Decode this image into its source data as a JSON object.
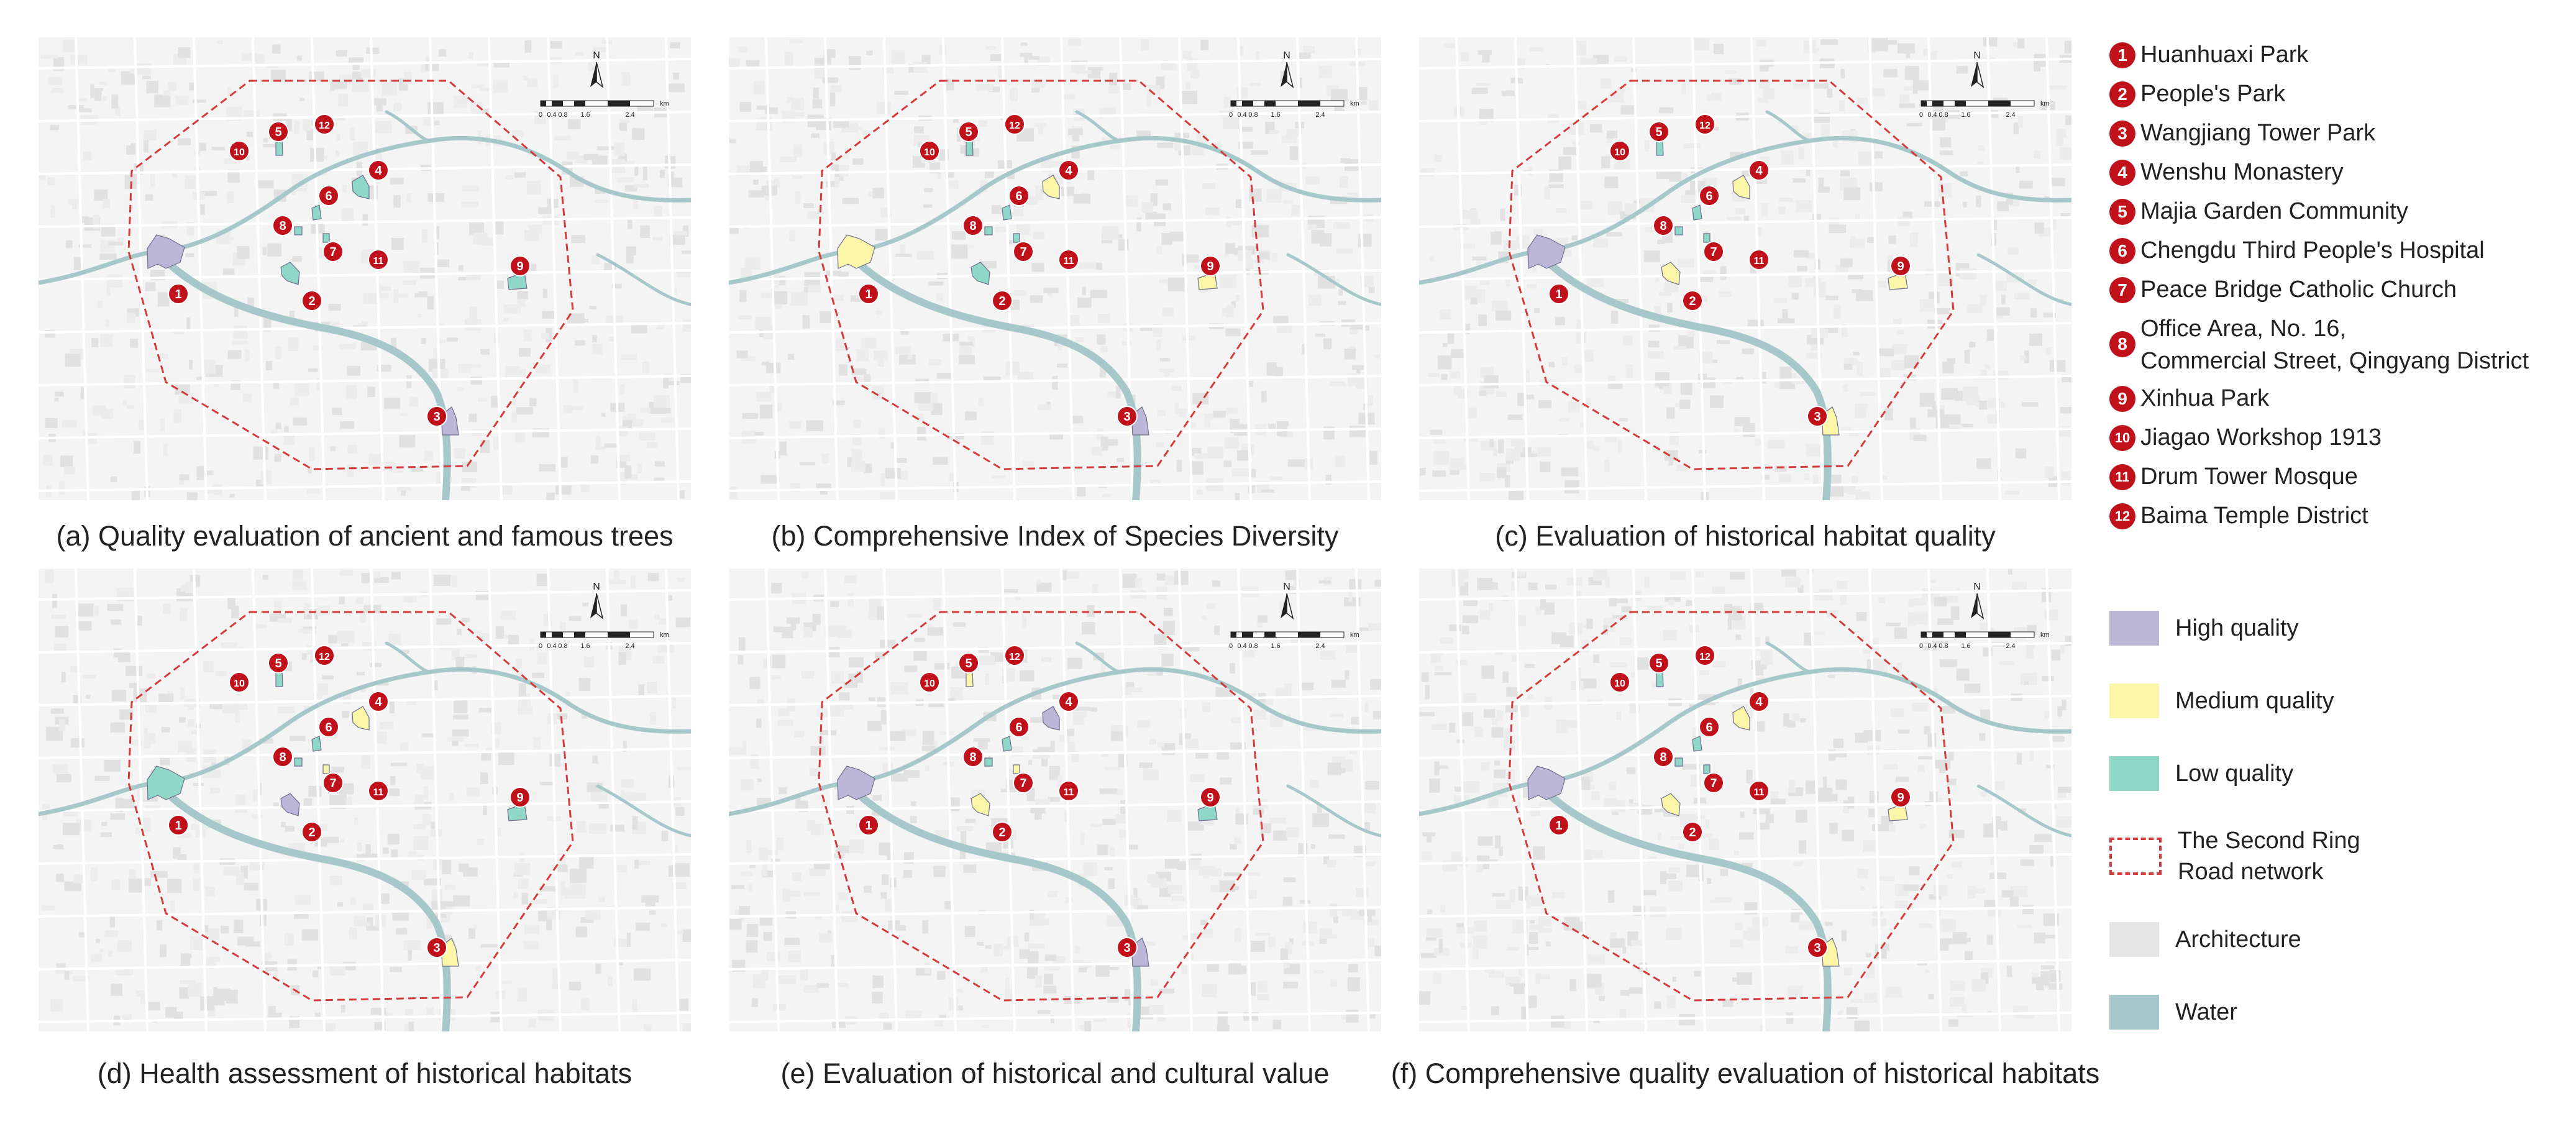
{
  "panels": [
    {
      "id": "a",
      "caption": "(a) Quality evaluation of ancient and famous trees",
      "sites": [
        "high",
        "low",
        "high",
        "low",
        "low",
        "low",
        "low",
        "low",
        "low",
        "none",
        "none",
        "none"
      ]
    },
    {
      "id": "b",
      "caption": "(b) Comprehensive Index of Species Diversity",
      "sites": [
        "medium",
        "low",
        "high",
        "medium",
        "low",
        "low",
        "low",
        "low",
        "medium",
        "none",
        "none",
        "none"
      ]
    },
    {
      "id": "c",
      "caption": "(c) Evaluation of historical habitat quality",
      "sites": [
        "high",
        "medium",
        "medium",
        "medium",
        "low",
        "low",
        "low",
        "low",
        "medium",
        "none",
        "none",
        "none"
      ]
    },
    {
      "id": "d",
      "caption": "(d) Health assessment of historical habitats",
      "sites": [
        "low",
        "high",
        "medium",
        "medium",
        "low",
        "low",
        "medium",
        "low",
        "low",
        "none",
        "none",
        "none"
      ]
    },
    {
      "id": "e",
      "caption": "(e)  Evaluation of historical and cultural value",
      "sites": [
        "high",
        "medium",
        "high",
        "high",
        "medium",
        "low",
        "medium",
        "low",
        "low",
        "none",
        "none",
        "none"
      ]
    },
    {
      "id": "f",
      "caption": "(f) Comprehensive quality evaluation of historical habitats",
      "sites": [
        "high",
        "medium",
        "medium",
        "medium",
        "low",
        "low",
        "low",
        "low",
        "medium",
        "none",
        "none",
        "none"
      ]
    }
  ],
  "map": {
    "scale_labels": [
      "0",
      "0.4",
      "0.8",
      "1.6",
      "2.4"
    ],
    "scale_unit": "km",
    "north_label": "N",
    "marker_numbers": [
      "1",
      "2",
      "3",
      "4",
      "5",
      "6",
      "7",
      "8",
      "9",
      "10",
      "11",
      "12"
    ]
  },
  "legend_sites": [
    {
      "num": "1",
      "name": "Huanhuaxi Park"
    },
    {
      "num": "2",
      "name": "People's Park"
    },
    {
      "num": "3",
      "name": "Wangjiang Tower Park"
    },
    {
      "num": "4",
      "name": "Wenshu Monastery"
    },
    {
      "num": "5",
      "name": "Majia Garden Community"
    },
    {
      "num": "6",
      "name": "Chengdu Third People's Hospital"
    },
    {
      "num": "7",
      "name": "Peace Bridge Catholic Church"
    },
    {
      "num": "8",
      "name": "Office Area, No. 16,",
      "name2": "Commercial Street, Qingyang District"
    },
    {
      "num": "9",
      "name": "Xinhua Park"
    },
    {
      "num": "10",
      "name": "Jiagao Workshop 1913"
    },
    {
      "num": "11",
      "name": "Drum Tower Mosque"
    },
    {
      "num": "12",
      "name": "Baima Temple District"
    }
  ],
  "legend_key": {
    "high": "High quality",
    "medium": "Medium quality",
    "low": "Low quality",
    "road_line1": "The Second Ring",
    "road_line2": "Road network",
    "architecture": "Architecture",
    "water": "Water"
  },
  "colors": {
    "high": "#bcb6d9",
    "medium": "#fbf6a8",
    "low": "#8fd8c7",
    "marker": "#c0111b",
    "road": "#d43a3a",
    "water": "#a7c8ca",
    "architecture": "#e8e8e8"
  }
}
